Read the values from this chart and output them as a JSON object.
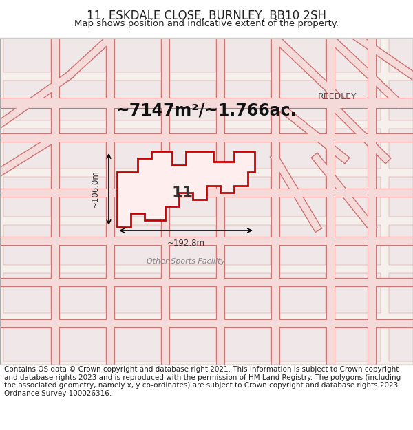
{
  "title": "11, ESKDALE CLOSE, BURNLEY, BB10 2SH",
  "subtitle": "Map shows position and indicative extent of the property.",
  "area_text": "~7147m²/~1.766ac.",
  "label_11": "11",
  "dim_width": "~192.8m",
  "dim_height": "~106.0m",
  "osf_label": "Other Sports Facility",
  "reedley_label": "REEDLEY",
  "footer": "Contains OS data © Crown copyright and database right 2021. This information is subject to Crown copyright and database rights 2023 and is reproduced with the permission of HM Land Registry. The polygons (including the associated geometry, namely x, y co-ordinates) are subject to Crown copyright and database rights 2023 Ordnance Survey 100026316.",
  "map_bg": "#f5f0eb",
  "road_color": "#e8b0b0",
  "road_stroke": "#d04040",
  "parcel_color": "#ffdddd",
  "highlight_color": "#cc0000",
  "highlight_fill": "none",
  "text_color": "#222222",
  "footer_bg": "#ffffff",
  "title_fontsize": 12,
  "subtitle_fontsize": 9.5,
  "area_fontsize": 17,
  "dim_fontsize": 9,
  "footer_fontsize": 7.5
}
